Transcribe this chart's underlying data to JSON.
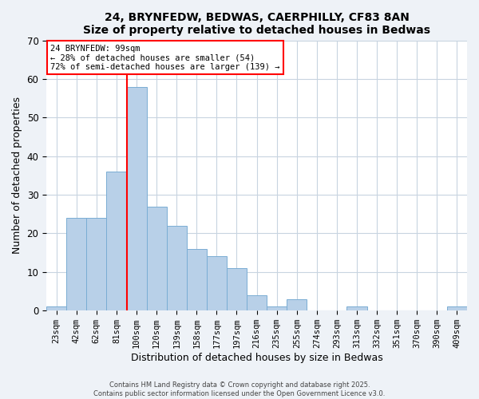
{
  "title": "24, BRYNFEDW, BEDWAS, CAERPHILLY, CF83 8AN",
  "subtitle": "Size of property relative to detached houses in Bedwas",
  "xlabel": "Distribution of detached houses by size in Bedwas",
  "ylabel": "Number of detached properties",
  "bar_labels": [
    "23sqm",
    "42sqm",
    "62sqm",
    "81sqm",
    "100sqm",
    "120sqm",
    "139sqm",
    "158sqm",
    "177sqm",
    "197sqm",
    "216sqm",
    "235sqm",
    "255sqm",
    "274sqm",
    "293sqm",
    "313sqm",
    "332sqm",
    "351sqm",
    "370sqm",
    "390sqm",
    "409sqm"
  ],
  "bar_values": [
    1,
    24,
    24,
    36,
    58,
    27,
    22,
    16,
    14,
    11,
    4,
    1,
    3,
    0,
    0,
    1,
    0,
    0,
    0,
    0,
    1
  ],
  "bar_color": "#b8d0e8",
  "bar_edge_color": "#7aadd4",
  "vline_color": "red",
  "vline_index": 4,
  "ylim": [
    0,
    70
  ],
  "yticks": [
    0,
    10,
    20,
    30,
    40,
    50,
    60,
    70
  ],
  "annotation_title": "24 BRYNFEDW: 99sqm",
  "annotation_line1": "← 28% of detached houses are smaller (54)",
  "annotation_line2": "72% of semi-detached houses are larger (139) →",
  "annotation_box_color": "white",
  "annotation_box_edge": "red",
  "footer1": "Contains HM Land Registry data © Crown copyright and database right 2025.",
  "footer2": "Contains public sector information licensed under the Open Government Licence v3.0.",
  "background_color": "#eef2f7",
  "plot_bg_color": "#ffffff",
  "grid_color": "#c8d4e0",
  "title_fontsize": 10,
  "axis_label_fontsize": 9,
  "tick_fontsize": 7.5,
  "annotation_fontsize": 7.5
}
